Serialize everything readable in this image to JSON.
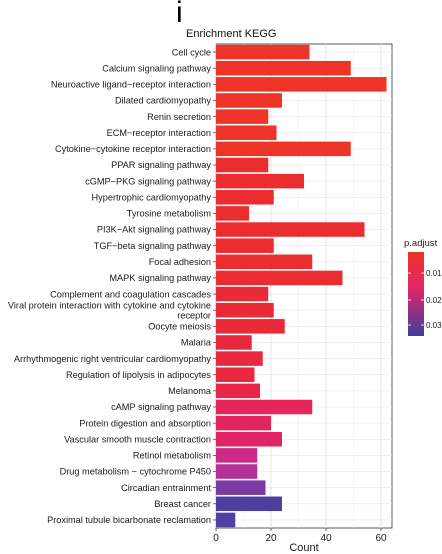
{
  "panel_label": "i",
  "chart_data": {
    "type": "bar",
    "orientation": "horizontal",
    "title": "Enrichment KEGG",
    "xlabel": "Count",
    "ylabel": "",
    "xlim": [
      0,
      64
    ],
    "xticks": [
      0,
      20,
      40,
      60
    ],
    "grid": true,
    "categories": [
      "Cell cycle",
      "Calcium signaling pathway",
      "Neuroactive ligand−receptor interaction",
      "Dilated cardiomyopathy",
      "Renin secretion",
      "ECM−receptor interaction",
      "Cytokine−cytokine receptor interaction",
      "PPAR signaling pathway",
      "cGMP−PKG signaling pathway",
      "Hypertrophic cardiomyopathy",
      "Tyrosine metabolism",
      "PI3K−Akt signaling pathway",
      "TGF−beta signaling pathway",
      "Focal adhesion",
      "MAPK signaling pathway",
      "Complement and coagulation cascades",
      "Viral protein interaction with cytokine and cytokine receptor",
      "Oocyte meiosis",
      "Malaria",
      "Arrhythmogenic right ventricular cardiomyopathy",
      "Regulation of lipolysis in adipocytes",
      "Melanoma",
      "cAMP signaling pathway",
      "Protein digestion and absorption",
      "Vascular smooth muscle contraction",
      "Retinol metabolism",
      "Drug metabolism − cytochrome P450",
      "Circadian entrainment",
      "Breast cancer",
      "Proximal tubule bicarbonate reclamation"
    ],
    "category_lines": [
      [
        "Cell cycle"
      ],
      [
        "Calcium signaling pathway"
      ],
      [
        "Neuroactive ligand−receptor interaction"
      ],
      [
        "Dilated cardiomyopathy"
      ],
      [
        "Renin secretion"
      ],
      [
        "ECM−receptor interaction"
      ],
      [
        "Cytokine−cytokine receptor interaction"
      ],
      [
        "PPAR signaling pathway"
      ],
      [
        "cGMP−PKG signaling pathway"
      ],
      [
        "Hypertrophic cardiomyopathy"
      ],
      [
        "Tyrosine metabolism"
      ],
      [
        "PI3K−Akt signaling pathway"
      ],
      [
        "TGF−beta signaling pathway"
      ],
      [
        "Focal adhesion"
      ],
      [
        "MAPK signaling pathway"
      ],
      [
        "Complement and coagulation cascades"
      ],
      [
        "Viral protein interaction with cytokine and cytokine",
        "receptor"
      ],
      [
        "Oocyte meiosis"
      ],
      [
        "Malaria"
      ],
      [
        "Arrhythmogenic right ventricular cardiomyopathy"
      ],
      [
        "Regulation of lipolysis in adipocytes"
      ],
      [
        "Melanoma"
      ],
      [
        "cAMP signaling pathway"
      ],
      [
        "Protein digestion and absorption"
      ],
      [
        "Vascular smooth muscle contraction"
      ],
      [
        "Retinol metabolism"
      ],
      [
        "Drug metabolism − cytochrome P450"
      ],
      [
        "Circadian entrainment"
      ],
      [
        "Breast cancer"
      ],
      [
        "Proximal tubule bicarbonate reclamation"
      ]
    ],
    "values": [
      34,
      49,
      62,
      24,
      19,
      22,
      49,
      19,
      32,
      21,
      12,
      54,
      21,
      35,
      46,
      19,
      21,
      25,
      13,
      17,
      14,
      16,
      35,
      20,
      24,
      15,
      15,
      18,
      24,
      7
    ],
    "bar_colors": [
      "#ee3427",
      "#ee3427",
      "#ee3427",
      "#ee3427",
      "#ee3427",
      "#ee3427",
      "#ee3427",
      "#ec2d30",
      "#ec2d30",
      "#ec2d30",
      "#ec2d30",
      "#ec2d30",
      "#ec2d30",
      "#ec2d30",
      "#ec2d30",
      "#ea2a38",
      "#ea2a38",
      "#ea2a38",
      "#e9283f",
      "#e9283f",
      "#e9283f",
      "#e8264a",
      "#e5265a",
      "#e3255e",
      "#e02566",
      "#cb2a88",
      "#b42f96",
      "#7c3aa4",
      "#4c3f9e",
      "#4e3fa0"
    ],
    "legend": {
      "title": "p.adjust",
      "position": "right",
      "tick_labels": [
        "0.01",
        "0.02",
        "0.03"
      ],
      "gradient_top": "#ee3327",
      "gradient_mid": "#e0266a",
      "gradient_bottom": "#3d3d9c"
    }
  }
}
